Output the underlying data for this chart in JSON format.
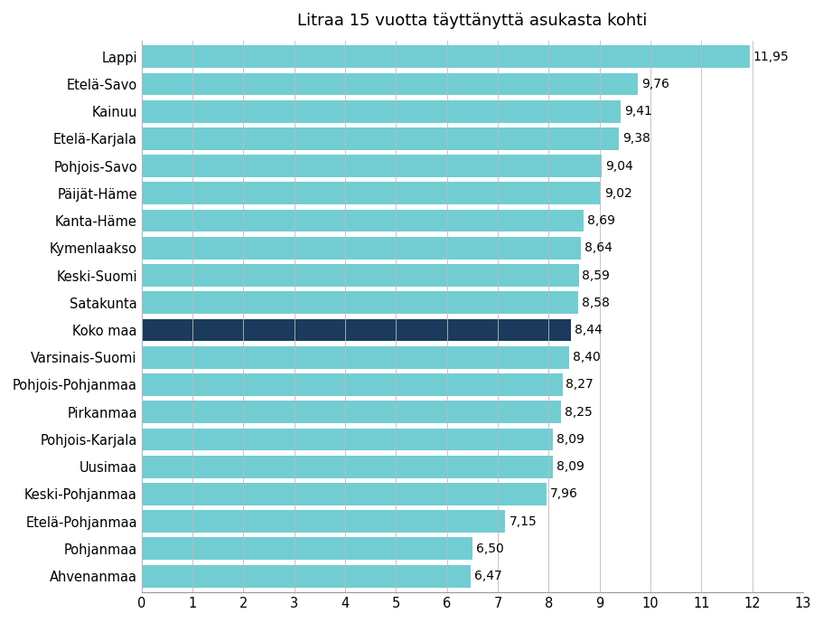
{
  "title": "Litraa 15 vuotta täyttänyttä asukasta kohti",
  "categories": [
    "Ahvenanmaa",
    "Pohjanmaa",
    "Etelä-Pohjanmaa",
    "Keski-Pohjanmaa",
    "Uusimaa",
    "Pohjois-Karjala",
    "Pirkanmaa",
    "Pohjois-Pohjanmaa",
    "Varsinais-Suomi",
    "Koko maa",
    "Satakunta",
    "Keski-Suomi",
    "Kymenlaakso",
    "Kanta-Häme",
    "Päijät-Häme",
    "Pohjois-Savo",
    "Etelä-Karjala",
    "Kainuu",
    "Etelä-Savo",
    "Lappi"
  ],
  "values": [
    6.47,
    6.5,
    7.15,
    7.96,
    8.09,
    8.09,
    8.25,
    8.27,
    8.4,
    8.44,
    8.58,
    8.59,
    8.64,
    8.69,
    9.02,
    9.04,
    9.38,
    9.41,
    9.76,
    11.95
  ],
  "bar_colors_default": "#72CDD3",
  "bar_color_highlight": "#1B3A5C",
  "highlight_index": 9,
  "xlim": [
    0,
    13
  ],
  "xticks": [
    0,
    1,
    2,
    3,
    4,
    5,
    6,
    7,
    8,
    9,
    10,
    11,
    12,
    13
  ],
  "background_color": "#ffffff",
  "grid_color": "#bbbbbb",
  "label_fontsize": 10.5,
  "title_fontsize": 13,
  "value_label_fontsize": 10
}
